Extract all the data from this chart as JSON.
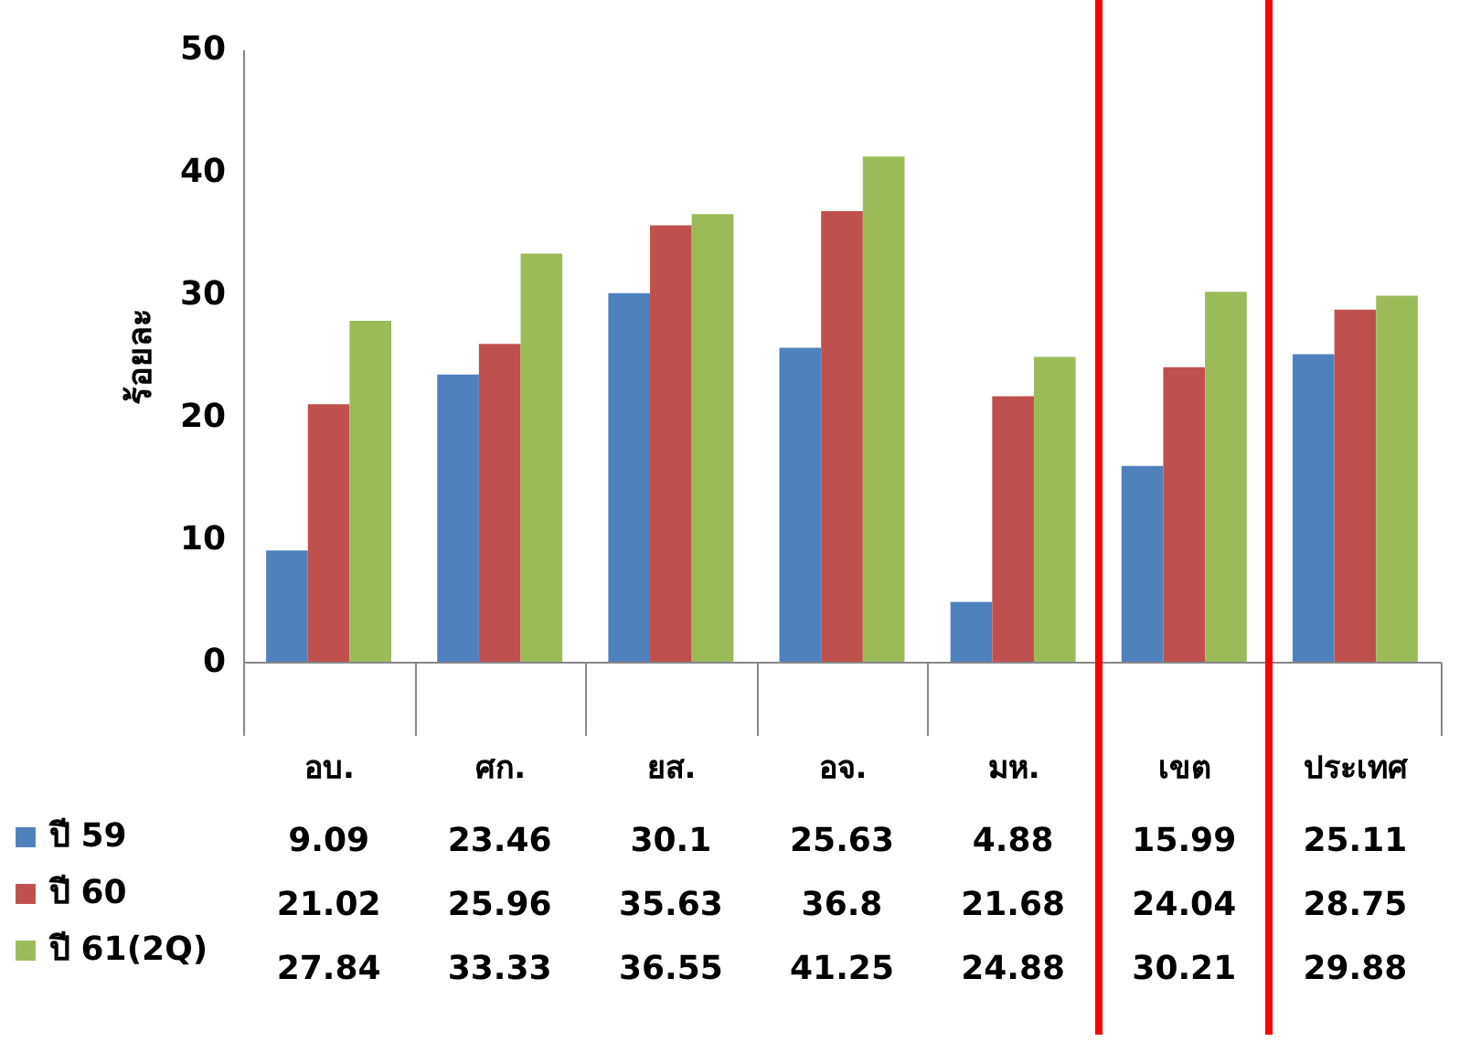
{
  "chart_data": {
    "type": "bar",
    "ylabel": "ร้อยละ",
    "categories": [
      "อบ.",
      "ศก.",
      "ยส.",
      "อจ.",
      "มห.",
      "เขต",
      "ประเทศ"
    ],
    "series": [
      {
        "name": "ปี 59",
        "color": "#4f81bd",
        "values": [
          9.09,
          23.46,
          30.1,
          25.63,
          4.88,
          15.99,
          25.11
        ]
      },
      {
        "name": "ปี 60",
        "color": "#c0504d",
        "values": [
          21.02,
          25.96,
          35.63,
          36.8,
          21.68,
          24.04,
          28.75
        ]
      },
      {
        "name": "ปี 61(2Q)",
        "color": "#9bbb59",
        "values": [
          27.84,
          33.33,
          36.55,
          41.25,
          24.88,
          30.21,
          29.88
        ]
      }
    ],
    "ylim": [
      0,
      50
    ],
    "yticks": [
      0,
      10,
      20,
      30,
      40,
      50
    ],
    "grid": false,
    "legend": "left",
    "data_labels": true
  }
}
